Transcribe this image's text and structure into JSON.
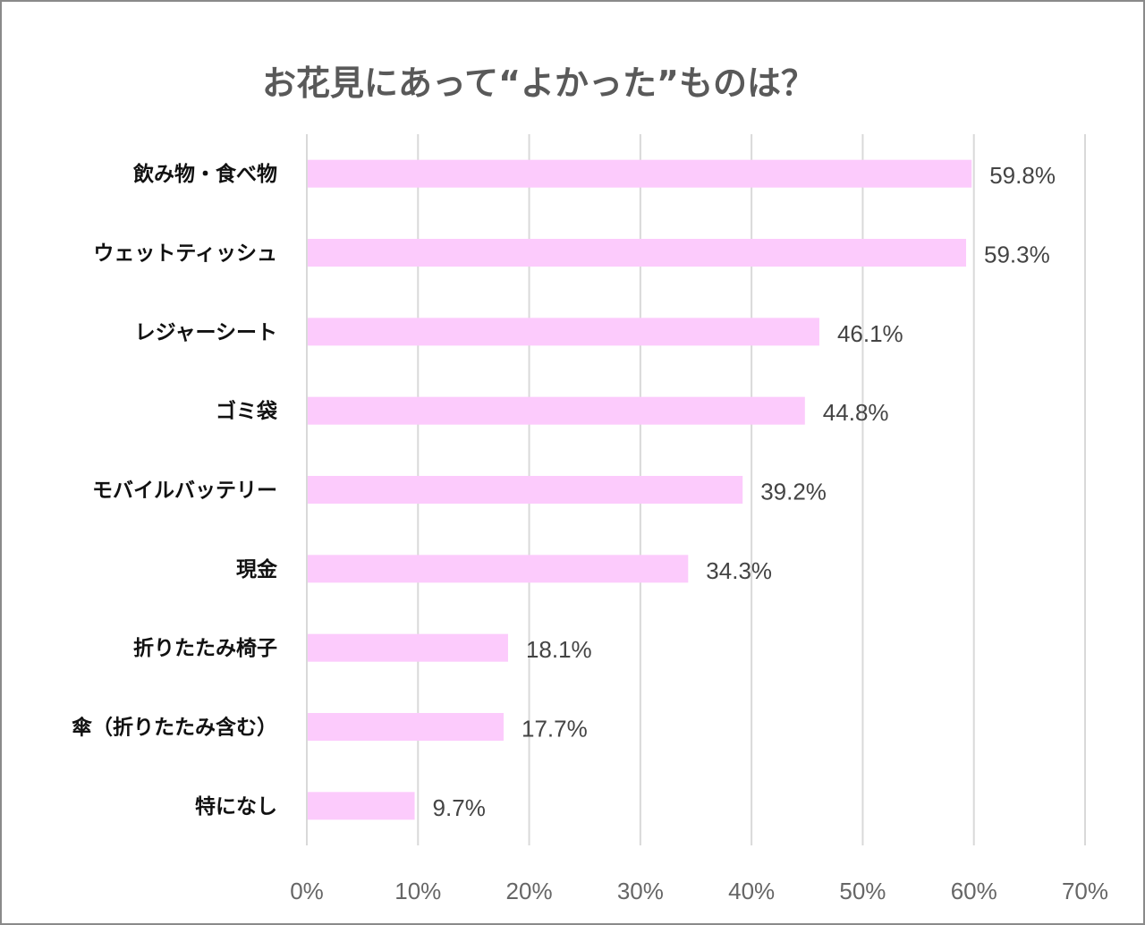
{
  "chart_data": {
    "type": "bar",
    "orientation": "horizontal",
    "title": "お花見にあって“よかった”ものは？",
    "categories": [
      "飲み物・食べ物",
      "ウェットティッシュ",
      "レジャーシート",
      "ゴミ袋",
      "モバイルバッテリー",
      "現金",
      "折りたたみ椅子",
      "傘（折りたたみ含む）",
      "特になし"
    ],
    "values": [
      59.8,
      59.3,
      46.1,
      44.8,
      39.2,
      34.3,
      18.1,
      17.7,
      9.7
    ],
    "data_labels": [
      "59.8%",
      "59.3%",
      "46.1%",
      "44.8%",
      "39.2%",
      "34.3%",
      "18.1%",
      "17.7%",
      "9.7%"
    ],
    "xlim": [
      0,
      70
    ],
    "x_ticks": [
      "0%",
      "10%",
      "20%",
      "30%",
      "40%",
      "50%",
      "60%",
      "70%"
    ],
    "grid": "vertical",
    "bar_color": "#fccbfc",
    "grid_color": "#d9d9d9"
  }
}
